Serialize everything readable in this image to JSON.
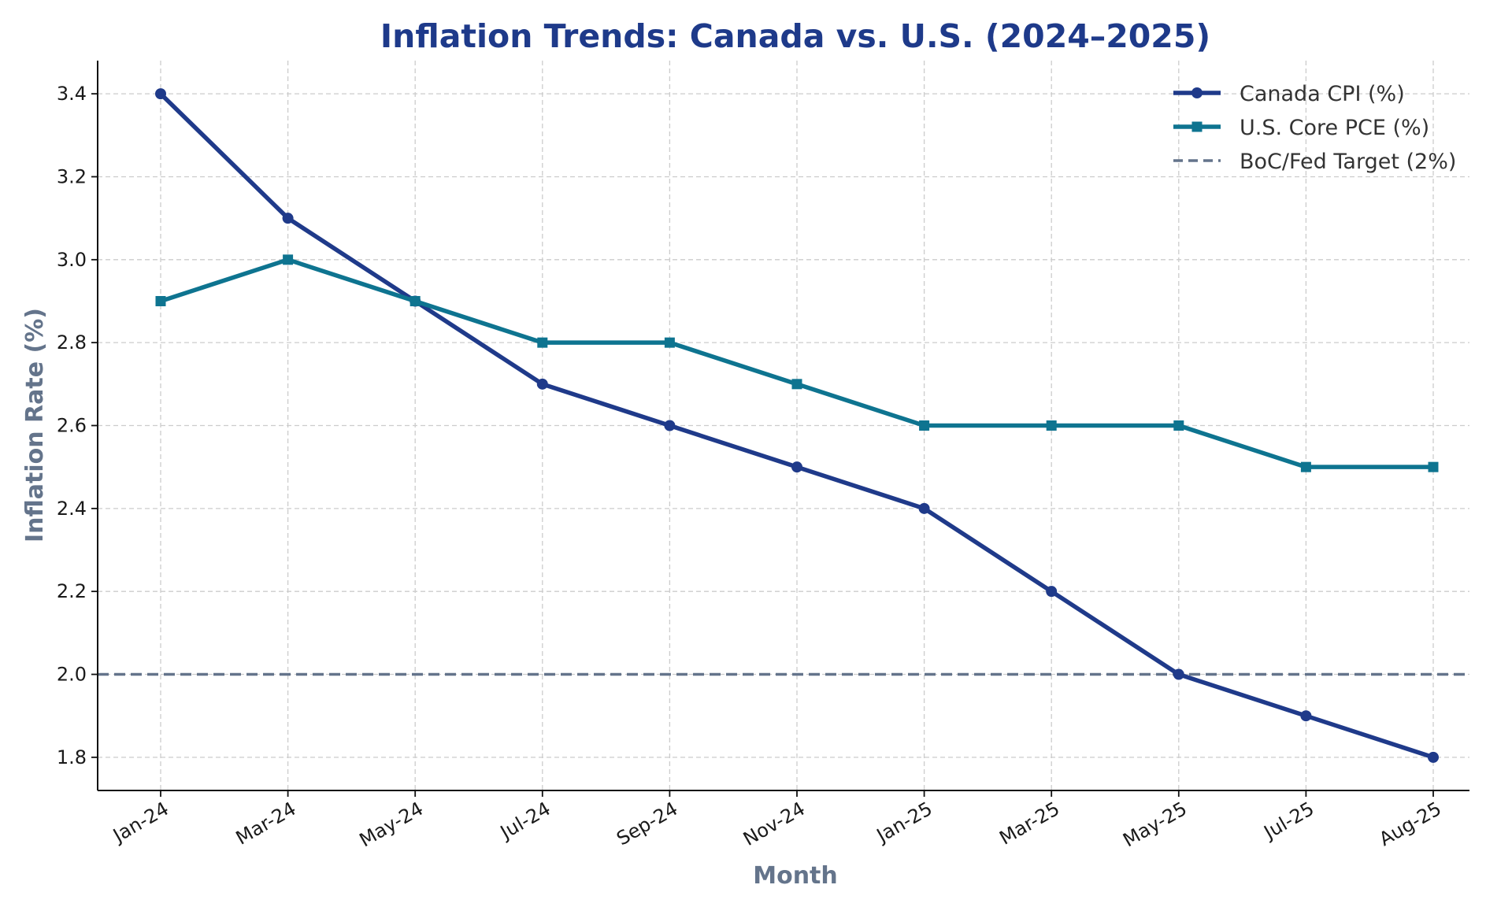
{
  "colors": {
    "canada": "#1f3a8a",
    "us": "#0e7490",
    "target": "#64748b",
    "title": "#1e3a8a",
    "axis_label": "#64748b",
    "grid": "#cccccc",
    "axis": "#111111"
  },
  "chart_data": {
    "type": "line",
    "title": "Inflation Trends: Canada vs. U.S. (2024–2025)",
    "xlabel": "Month",
    "ylabel": "Inflation Rate (%)",
    "categories": [
      "Jan-24",
      "Mar-24",
      "May-24",
      "Jul-24",
      "Sep-24",
      "Nov-24",
      "Jan-25",
      "Mar-25",
      "May-25",
      "Jul-25",
      "Aug-25"
    ],
    "ylim": [
      1.72,
      3.48
    ],
    "yticks": [
      1.8,
      2.0,
      2.2,
      2.4,
      2.6,
      2.8,
      3.0,
      3.2,
      3.4
    ],
    "ytick_labels": [
      "1.8",
      "2.0",
      "2.2",
      "2.4",
      "2.6",
      "2.8",
      "3.0",
      "3.2",
      "3.4"
    ],
    "grid": true,
    "legend_position": "top-right",
    "series": [
      {
        "name": "Canada CPI (%)",
        "marker": "circle",
        "values": [
          3.4,
          3.1,
          2.9,
          2.7,
          2.6,
          2.5,
          2.4,
          2.2,
          2.0,
          1.9,
          1.8
        ]
      },
      {
        "name": "U.S. Core PCE (%)",
        "marker": "square",
        "values": [
          2.9,
          3.0,
          2.9,
          2.8,
          2.8,
          2.7,
          2.6,
          2.6,
          2.6,
          2.5,
          2.5
        ]
      }
    ],
    "reference_line": {
      "name": "BoC/Fed Target (2%)",
      "value": 2.0,
      "style": "dashed"
    }
  }
}
